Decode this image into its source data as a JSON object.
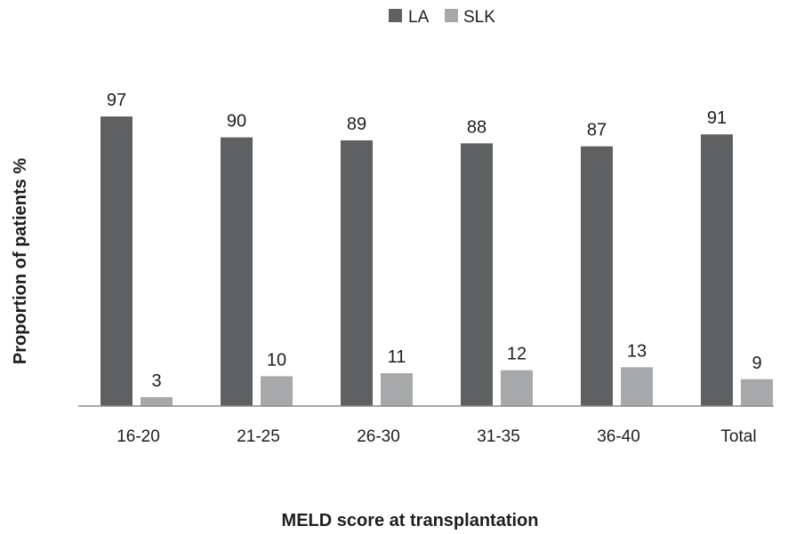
{
  "chart_data": {
    "type": "bar",
    "categories": [
      "16-20",
      "21-25",
      "26-30",
      "31-35",
      "36-40",
      "Total"
    ],
    "series": [
      {
        "name": "LA",
        "values": [
          97,
          90,
          89,
          88,
          87,
          91
        ],
        "color": "#5f6061"
      },
      {
        "name": "SLK",
        "values": [
          3,
          10,
          11,
          12,
          13,
          9
        ],
        "color": "#a7a8a9"
      }
    ],
    "xlabel": "MELD score at transplantation",
    "ylabel": "Proportion of patients %",
    "ylim": [
      0,
      100
    ],
    "grid": false,
    "legend": "top-center",
    "data_labels": true
  }
}
